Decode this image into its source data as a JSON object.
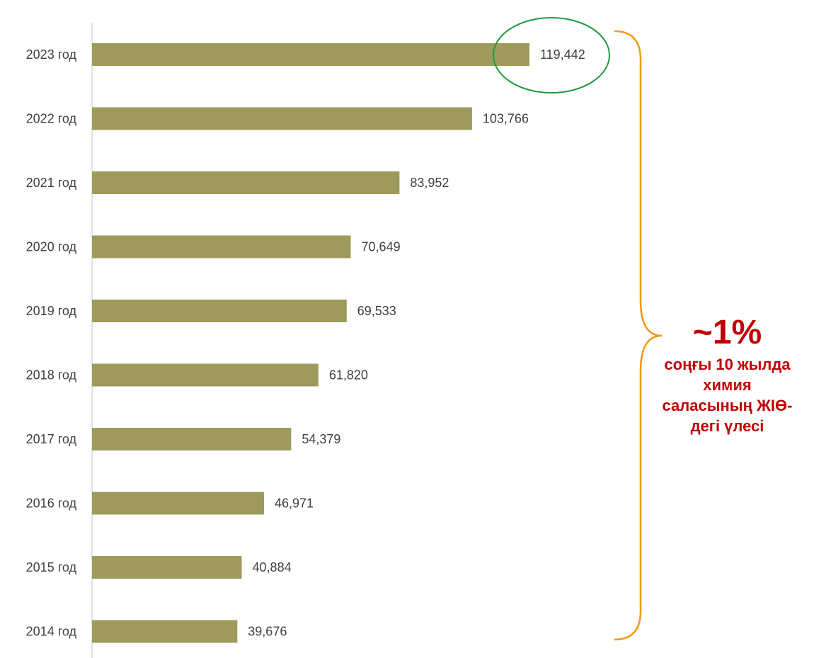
{
  "chart_data": {
    "type": "bar",
    "orientation": "horizontal",
    "categories": [
      "2023 год",
      "2022 год",
      "2021 год",
      "2020 год",
      "2019 год",
      "2018 год",
      "2017 год",
      "2016 год",
      "2015 год",
      "2014 год"
    ],
    "values": [
      119442,
      103766,
      83952,
      70649,
      69533,
      61820,
      54379,
      46971,
      40884,
      39676
    ],
    "value_labels": [
      "119,442",
      "103,766",
      "83,952",
      "70,649",
      "69,533",
      "61,820",
      "54,379",
      "46,971",
      "40,884",
      "39,676"
    ],
    "highlighted_category": "2023 год",
    "title": "",
    "xlabel": "",
    "ylabel": "",
    "grid": false,
    "legend": "none"
  },
  "annotation": {
    "headline": "~1%",
    "lines": [
      "соңғы 10 жылда",
      "химия",
      "саласының ЖІӨ-",
      "дегі үлесі"
    ]
  },
  "colors": {
    "bar": "#9e9a5c",
    "highlight_circle": "#1e9a3c",
    "brace": "#f09a16",
    "annotation_text": "#c00000",
    "axis_line": "#d9d9d9",
    "label_text": "#404040"
  }
}
